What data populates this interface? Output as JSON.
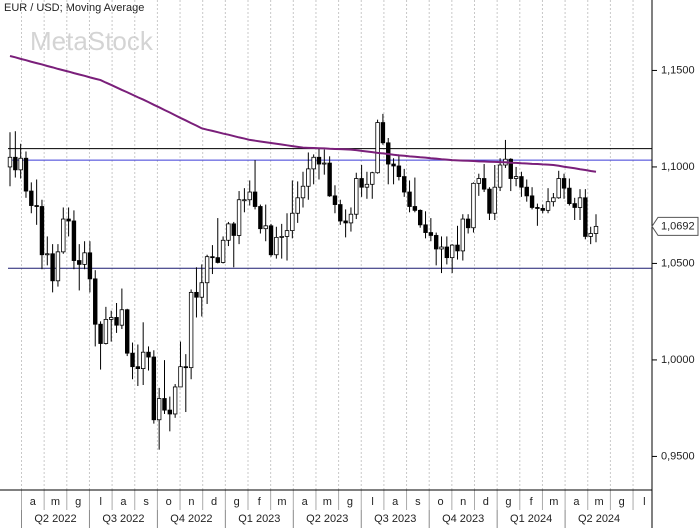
{
  "chart_data": {
    "type": "candlestick",
    "title": "EUR / USD; Moving Average",
    "watermark": "MetaStock",
    "ylim": [
      0.9326,
      1.1865
    ],
    "yticks": [
      {
        "value": 0.95,
        "label": "0,9500"
      },
      {
        "value": 1.0,
        "label": "1,0000"
      },
      {
        "value": 1.05,
        "label": "1,0500"
      },
      {
        "value": 1.1,
        "label": "1,1000"
      },
      {
        "value": 1.15,
        "label": "1,1500"
      }
    ],
    "grid": true,
    "months": [
      "a",
      "m",
      "g",
      "l",
      "a",
      "s",
      "o",
      "n",
      "d",
      "g",
      "f",
      "m",
      "a",
      "m",
      "g",
      "l",
      "a",
      "s",
      "o",
      "n",
      "d",
      "g",
      "f",
      "m",
      "a",
      "m",
      "g",
      "l"
    ],
    "quarters": [
      "Q2 2022",
      "Q3 2022",
      "Q4 2022",
      "Q1 2023",
      "Q2 2023",
      "Q3 2023",
      "Q4 2023",
      "Q1 2024",
      "Q2 2024"
    ],
    "up_color": "#ffffff",
    "down_color": "#000000",
    "ohlc": {
      "open": [
        1.1,
        1.105,
        1.0985,
        1.1045,
        1.0875,
        1.08,
        1.0795,
        1.0545,
        1.055,
        1.041,
        1.056,
        1.073,
        1.072,
        1.0515,
        1.0495,
        1.0555,
        1.042,
        1.0185,
        1.0085,
        1.021,
        1.022,
        1.018,
        1.026,
        1.0035,
        0.9965,
        0.9955,
        1.004,
        1.0015,
        0.969,
        0.98,
        0.974,
        0.972,
        0.986,
        0.9965,
        0.996,
        1.035,
        1.0325,
        1.04,
        1.0535,
        1.053,
        1.0505,
        1.062,
        1.0705,
        1.0645,
        1.083,
        1.083,
        1.087,
        1.0795,
        1.068,
        1.0695,
        1.0545,
        1.0635,
        1.064,
        1.067,
        1.076,
        1.084,
        1.09,
        1.099,
        1.105,
        1.1015,
        1.102,
        1.085,
        1.0805,
        1.072,
        1.071,
        1.0755,
        1.094,
        1.0895,
        1.091,
        1.097,
        1.123,
        1.1125,
        1.1015,
        1.1005,
        1.095,
        1.087,
        1.0795,
        1.0775,
        1.07,
        1.066,
        1.0645,
        1.0575,
        1.0585,
        1.053,
        1.0595,
        1.0565,
        1.073,
        1.0685,
        1.0915,
        1.094,
        1.0885,
        1.076,
        1.0895,
        1.101,
        1.104,
        1.094,
        1.095,
        1.0895,
        1.085,
        1.079,
        1.0785,
        1.0775,
        1.082,
        1.084,
        1.094,
        1.089,
        1.081,
        1.079,
        1.084,
        1.064,
        1.0655
      ],
      "high": [
        1.118,
        1.1185,
        1.112,
        1.108,
        1.092,
        1.0935,
        1.083,
        1.064,
        1.06,
        1.06,
        1.079,
        1.079,
        1.0775,
        1.06,
        1.0615,
        1.0615,
        1.0465,
        1.02,
        1.0275,
        1.0255,
        1.0295,
        1.037,
        1.0265,
        1.009,
        1.008,
        1.0195,
        1.007,
        1.005,
        0.9855,
        0.9999,
        0.981,
        0.9875,
        1.0095,
        1.003,
        1.0365,
        1.048,
        1.0495,
        1.0545,
        1.0595,
        1.0735,
        1.064,
        1.0715,
        1.0715,
        1.0875,
        1.089,
        1.093,
        1.1035,
        1.0805,
        1.0805,
        1.0705,
        1.069,
        1.0705,
        1.076,
        1.093,
        1.0925,
        1.0975,
        1.1075,
        1.1065,
        1.1095,
        1.109,
        1.1055,
        1.0905,
        1.083,
        1.078,
        1.079,
        1.097,
        1.101,
        1.0975,
        1.0975,
        1.1245,
        1.1275,
        1.115,
        1.1045,
        1.1065,
        1.099,
        1.093,
        1.0945,
        1.078,
        1.077,
        1.0735,
        1.066,
        1.064,
        1.064,
        1.06,
        1.0695,
        1.0755,
        1.0755,
        1.092,
        1.0965,
        1.1015,
        1.0895,
        1.101,
        1.1045,
        1.114,
        1.1045,
        1.1,
        1.0975,
        1.0935,
        1.0895,
        1.081,
        1.0805,
        1.089,
        1.0865,
        1.098,
        1.0965,
        1.094,
        1.084,
        1.0885,
        1.0885,
        1.069,
        1.0755
      ],
      "low": [
        1.09,
        1.0945,
        1.094,
        1.084,
        1.076,
        1.07,
        1.047,
        1.049,
        1.035,
        1.038,
        1.055,
        1.064,
        1.047,
        1.036,
        1.047,
        1.035,
        1.007,
        0.995,
        1.008,
        1.0095,
        1.014,
        1.016,
        1.002,
        0.99,
        0.9865,
        0.987,
        0.9945,
        0.967,
        0.9535,
        0.972,
        0.963,
        0.97,
        0.986,
        0.973,
        0.99,
        1.022,
        1.0225,
        1.029,
        1.0445,
        1.05,
        1.05,
        1.059,
        1.048,
        1.06,
        1.0765,
        1.08,
        1.078,
        1.0655,
        1.0615,
        1.0535,
        1.0525,
        1.0525,
        1.0515,
        1.063,
        1.071,
        1.079,
        1.083,
        1.091,
        1.0935,
        1.096,
        1.0845,
        1.076,
        1.07,
        1.0635,
        1.0665,
        1.073,
        1.0845,
        1.0835,
        1.0835,
        1.0965,
        1.1115,
        1.091,
        1.091,
        1.093,
        1.0845,
        1.0765,
        1.0765,
        1.0685,
        1.063,
        1.0615,
        1.049,
        1.045,
        1.0495,
        1.045,
        1.052,
        1.0515,
        1.0655,
        1.066,
        1.085,
        1.087,
        1.0725,
        1.0725,
        1.0875,
        1.0995,
        1.0875,
        1.09,
        1.0845,
        1.082,
        1.078,
        1.0695,
        1.076,
        1.076,
        1.0795,
        1.0835,
        1.0835,
        1.08,
        1.0725,
        1.0725,
        1.0625,
        1.06,
        1.061
      ],
      "close": [
        1.105,
        1.0985,
        1.1045,
        1.0875,
        1.08,
        1.0795,
        1.0545,
        1.055,
        1.041,
        1.056,
        1.073,
        1.072,
        1.0515,
        1.0495,
        1.0555,
        1.042,
        1.0185,
        1.0085,
        1.021,
        1.022,
        1.018,
        1.026,
        1.0035,
        0.9965,
        0.9955,
        1.004,
        1.0015,
        0.969,
        0.98,
        0.974,
        0.972,
        0.986,
        0.9965,
        0.996,
        1.035,
        1.0325,
        1.04,
        1.0535,
        1.053,
        1.0505,
        1.062,
        1.0705,
        1.0645,
        1.083,
        1.083,
        1.087,
        1.0795,
        1.068,
        1.0695,
        1.0545,
        1.0635,
        1.064,
        1.067,
        1.076,
        1.084,
        1.09,
        1.099,
        1.105,
        1.1015,
        1.102,
        1.085,
        1.0805,
        1.072,
        1.071,
        1.0755,
        1.094,
        1.0895,
        1.091,
        1.097,
        1.123,
        1.1125,
        1.1015,
        1.1005,
        1.095,
        1.087,
        1.0795,
        1.0775,
        1.07,
        1.066,
        1.0645,
        1.0575,
        1.0585,
        1.053,
        1.0595,
        1.0565,
        1.073,
        1.0685,
        1.0915,
        1.094,
        1.0885,
        1.076,
        1.0895,
        1.101,
        1.104,
        1.094,
        1.095,
        1.0895,
        1.085,
        1.079,
        1.0785,
        1.0775,
        1.082,
        1.084,
        1.094,
        1.089,
        1.081,
        1.079,
        1.084,
        1.064,
        1.0655,
        1.0692
      ]
    },
    "last_price_label": "1,0692",
    "moving_average": {
      "color": "#7a1f7a",
      "values": [
        1.1575,
        1.1568,
        1.156,
        1.1553,
        1.1545,
        1.1538,
        1.1531,
        1.1523,
        1.1516,
        1.1508,
        1.1501,
        1.1494,
        1.1486,
        1.1479,
        1.1472,
        1.1464,
        1.1457,
        1.145,
        1.1437,
        1.1425,
        1.1412,
        1.1399,
        1.1387,
        1.1374,
        1.1361,
        1.1349,
        1.1336,
        1.1322,
        1.1309,
        1.1295,
        1.1282,
        1.1268,
        1.1254,
        1.1241,
        1.1227,
        1.1214,
        1.12,
        1.1193,
        1.1187,
        1.118,
        1.1173,
        1.1167,
        1.116,
        1.1153,
        1.1147,
        1.114,
        1.1136,
        1.1132,
        1.1128,
        1.1124,
        1.112,
        1.1116,
        1.1112,
        1.1108,
        1.1104,
        1.11,
        1.1099,
        1.1098,
        1.1097,
        1.1096,
        1.1094,
        1.1093,
        1.1092,
        1.1091,
        1.109,
        1.1087,
        1.1083,
        1.108,
        1.1077,
        1.1073,
        1.107,
        1.1067,
        1.1063,
        1.106,
        1.1058,
        1.1055,
        1.1053,
        1.105,
        1.1048,
        1.1045,
        1.1043,
        1.104,
        1.1038,
        1.1035,
        1.1034,
        1.1033,
        1.1032,
        1.1031,
        1.1029,
        1.1028,
        1.1027,
        1.1026,
        1.1025,
        1.1024,
        1.1022,
        1.1021,
        1.1019,
        1.1018,
        1.1016,
        1.1015,
        1.1013,
        1.1012,
        1.101,
        1.1006,
        1.1001,
        1.0997,
        1.0993,
        1.0988,
        1.0984,
        1.0979,
        1.0975
      ]
    },
    "hlines": [
      {
        "value": 1.1095,
        "color": "#000000"
      },
      {
        "value": 1.1035,
        "color": "#3b3bd6"
      },
      {
        "value": 1.0475,
        "color": "#1c1c70"
      }
    ]
  }
}
